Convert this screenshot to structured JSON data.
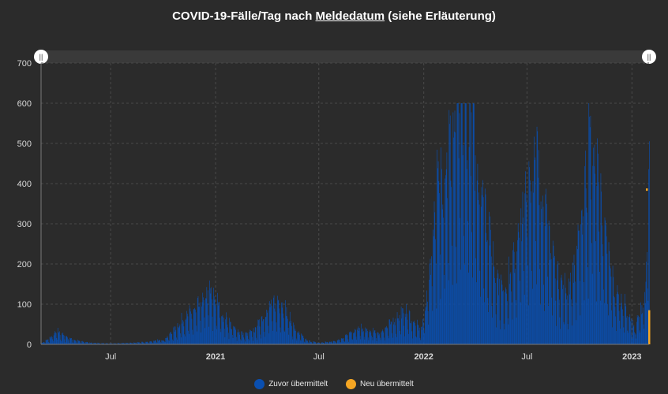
{
  "title": {
    "prefix": "COVID-19-Fälle/Tag nach ",
    "underlined": "Meldedatum",
    "suffix": " (siehe Erläuterung)"
  },
  "navigator": {
    "left_handle": "||",
    "right_handle": "||"
  },
  "legend": {
    "items": [
      {
        "label": "Zuvor übermittelt",
        "color": "#0a4fb0"
      },
      {
        "label": "Neu übermittelt",
        "color": "#f5a623"
      }
    ]
  },
  "chart_data": {
    "type": "bar",
    "stacked": true,
    "x_axis": {
      "type": "date",
      "range": [
        "2020-03-01",
        "2023-01-31"
      ],
      "tick_labels": [
        {
          "date": "2020-07-01",
          "label": "Jul",
          "bold": false
        },
        {
          "date": "2021-01-01",
          "label": "2021",
          "bold": true
        },
        {
          "date": "2021-07-01",
          "label": "Jul",
          "bold": false
        },
        {
          "date": "2022-01-01",
          "label": "2022",
          "bold": true
        },
        {
          "date": "2022-07-01",
          "label": "Jul",
          "bold": false
        },
        {
          "date": "2023-01-01",
          "label": "2023",
          "bold": true
        }
      ]
    },
    "y_axis": {
      "ylim": [
        0,
        700
      ],
      "ticks": [
        0,
        100,
        200,
        300,
        400,
        500,
        600,
        700
      ]
    },
    "grid": true,
    "legend_position": "bottom",
    "series": [
      {
        "name": "Zuvor übermittelt",
        "color": "#0a4fb0",
        "weekly_trend": [
          [
            "2020-03-01",
            2
          ],
          [
            "2020-03-15",
            12
          ],
          [
            "2020-03-29",
            28
          ],
          [
            "2020-04-12",
            18
          ],
          [
            "2020-04-26",
            10
          ],
          [
            "2020-05-10",
            6
          ],
          [
            "2020-06-01",
            3
          ],
          [
            "2020-07-01",
            2
          ],
          [
            "2020-08-01",
            3
          ],
          [
            "2020-09-01",
            5
          ],
          [
            "2020-10-01",
            10
          ],
          [
            "2020-10-20",
            30
          ],
          [
            "2020-11-05",
            55
          ],
          [
            "2020-11-25",
            70
          ],
          [
            "2020-12-10",
            95
          ],
          [
            "2020-12-20",
            115
          ],
          [
            "2021-01-01",
            95
          ],
          [
            "2021-01-15",
            60
          ],
          [
            "2021-02-01",
            35
          ],
          [
            "2021-02-20",
            20
          ],
          [
            "2021-03-10",
            30
          ],
          [
            "2021-03-25",
            60
          ],
          [
            "2021-04-10",
            85
          ],
          [
            "2021-04-22",
            95
          ],
          [
            "2021-05-05",
            70
          ],
          [
            "2021-05-20",
            30
          ],
          [
            "2021-06-10",
            8
          ],
          [
            "2021-07-01",
            3
          ],
          [
            "2021-08-01",
            8
          ],
          [
            "2021-08-20",
            20
          ],
          [
            "2021-09-10",
            35
          ],
          [
            "2021-09-25",
            28
          ],
          [
            "2021-10-15",
            25
          ],
          [
            "2021-11-05",
            45
          ],
          [
            "2021-11-20",
            65
          ],
          [
            "2021-12-01",
            70
          ],
          [
            "2021-12-15",
            45
          ],
          [
            "2021-12-28",
            30
          ],
          [
            "2022-01-08",
            120
          ],
          [
            "2022-01-20",
            300
          ],
          [
            "2022-02-05",
            380
          ],
          [
            "2022-02-20",
            430
          ],
          [
            "2022-03-05",
            470
          ],
          [
            "2022-03-15",
            500
          ],
          [
            "2022-03-25",
            470
          ],
          [
            "2022-04-05",
            380
          ],
          [
            "2022-04-20",
            280
          ],
          [
            "2022-05-05",
            160
          ],
          [
            "2022-05-20",
            110
          ],
          [
            "2022-06-05",
            160
          ],
          [
            "2022-06-20",
            260
          ],
          [
            "2022-07-05",
            360
          ],
          [
            "2022-07-15",
            400
          ],
          [
            "2022-07-25",
            340
          ],
          [
            "2022-08-10",
            220
          ],
          [
            "2022-08-25",
            140
          ],
          [
            "2022-09-10",
            110
          ],
          [
            "2022-09-25",
            180
          ],
          [
            "2022-10-10",
            330
          ],
          [
            "2022-10-20",
            440
          ],
          [
            "2022-11-01",
            360
          ],
          [
            "2022-11-15",
            220
          ],
          [
            "2022-12-01",
            110
          ],
          [
            "2022-12-15",
            90
          ],
          [
            "2022-12-28",
            60
          ],
          [
            "2023-01-05",
            30
          ],
          [
            "2023-01-15",
            70
          ],
          [
            "2023-01-25",
            110
          ],
          [
            "2023-01-31",
            380
          ]
        ]
      },
      {
        "name": "Neu übermittelt",
        "color": "#f5a623",
        "values": [
          {
            "date": "2023-01-31",
            "value": 85
          }
        ]
      }
    ]
  }
}
